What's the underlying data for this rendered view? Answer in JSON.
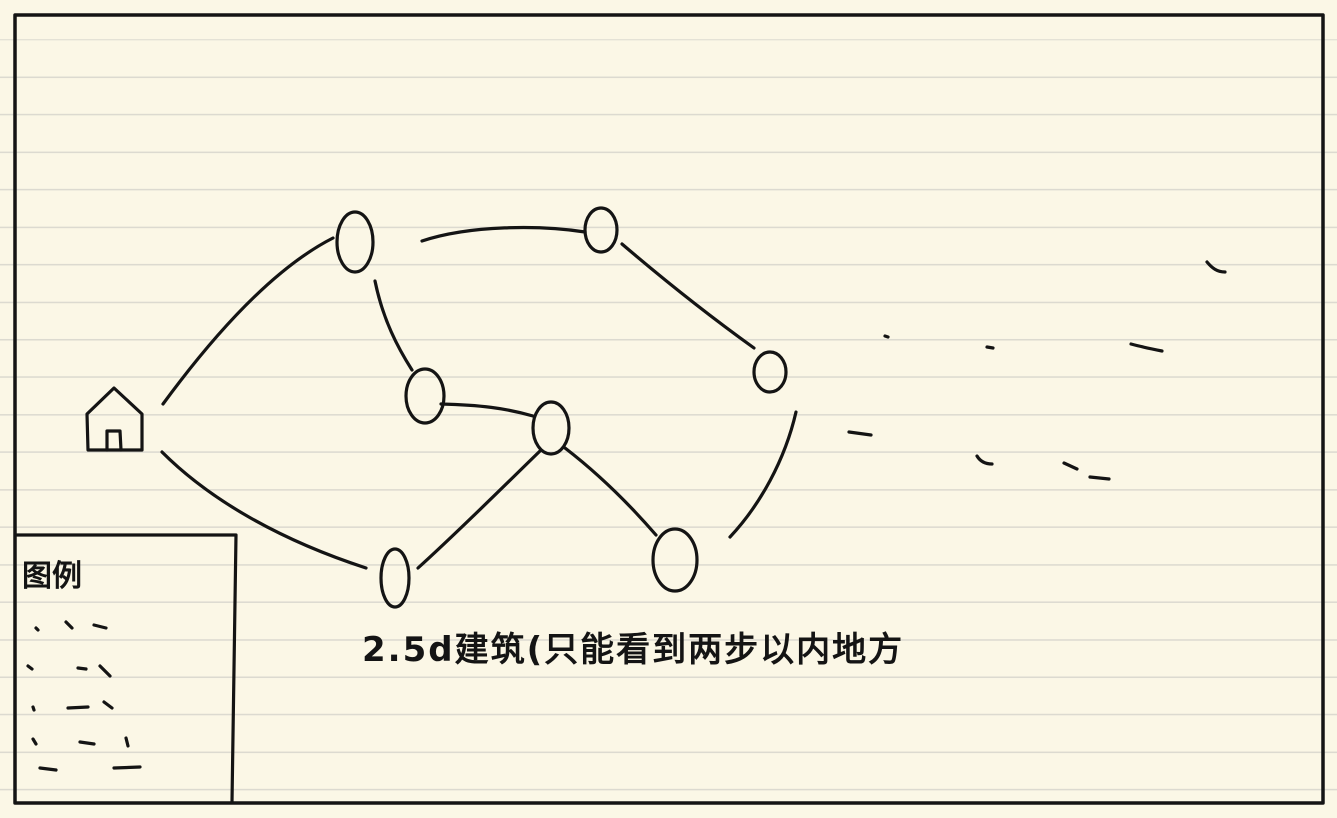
{
  "legend": {
    "title": "图例"
  },
  "caption": "2.5d建筑(只能看到两步以内地方"
}
